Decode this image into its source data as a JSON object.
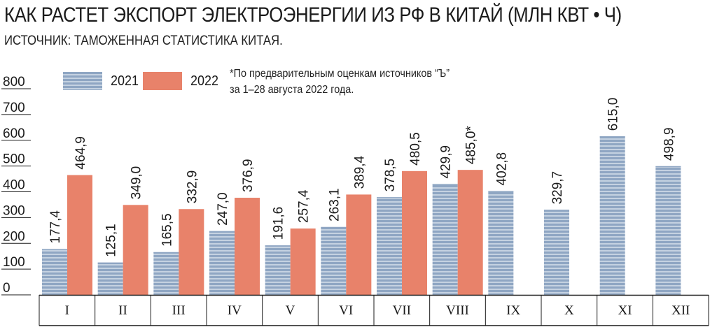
{
  "header": {
    "title": "КАК РАСТЕТ ЭКСПОРТ ЭЛЕКТРОЭНЕРГИИ ИЗ РФ В КИТАЙ (МЛН КВТ • Ч)",
    "subtitle": "ИСТОЧНИК: ТАМОЖЕННАЯ СТАТИСТИКА КИТАЯ."
  },
  "note": {
    "line1": "*По предварительным оценкам источников “Ъ”",
    "line2": "за 1–28 августа 2022 года."
  },
  "colors": {
    "series_2021": "#8fa6c3",
    "series_2021_stripe": "#c5d2e1",
    "series_2022": "#e8826a",
    "axis": "#1a1a1a"
  },
  "chart_data": {
    "type": "bar",
    "title": "КАК РАСТЕТ ЭКСПОРТ ЭЛЕКТРОЭНЕРГИИ ИЗ РФ В КИТАЙ (МЛН КВТ • Ч)",
    "subtitle": "ИСТОЧНИК: ТАМОЖЕННАЯ СТАТИСТИКА КИТАЯ.",
    "categories": [
      "I",
      "II",
      "III",
      "IV",
      "V",
      "VI",
      "VII",
      "VIII",
      "IX",
      "X",
      "XI",
      "XII"
    ],
    "series": [
      {
        "name": "2021",
        "values": [
          177.4,
          125.1,
          165.5,
          247.0,
          191.6,
          263.1,
          378.5,
          429.9,
          402.8,
          329.7,
          615.0,
          498.9
        ],
        "labels": [
          "177,4",
          "125,1",
          "165,5",
          "247,0",
          "191,6",
          "263,1",
          "378,5",
          "429,9",
          "402,8",
          "329,7",
          "615,0",
          "498,9"
        ]
      },
      {
        "name": "2022",
        "values": [
          464.9,
          349.0,
          332.9,
          376.9,
          257.4,
          389.4,
          480.5,
          485.0,
          null,
          null,
          null,
          null
        ],
        "labels": [
          "464,9",
          "349,0",
          "332,9",
          "376,9",
          "257,4",
          "389,4",
          "480,5",
          "485,0*",
          null,
          null,
          null,
          null
        ]
      }
    ],
    "yticks": [
      "0",
      "100",
      "200",
      "300",
      "400",
      "500",
      "600",
      "700",
      "800"
    ],
    "ylim": [
      0,
      800
    ],
    "xlabel": "",
    "ylabel": "",
    "grid": true,
    "legend": "top-left"
  }
}
